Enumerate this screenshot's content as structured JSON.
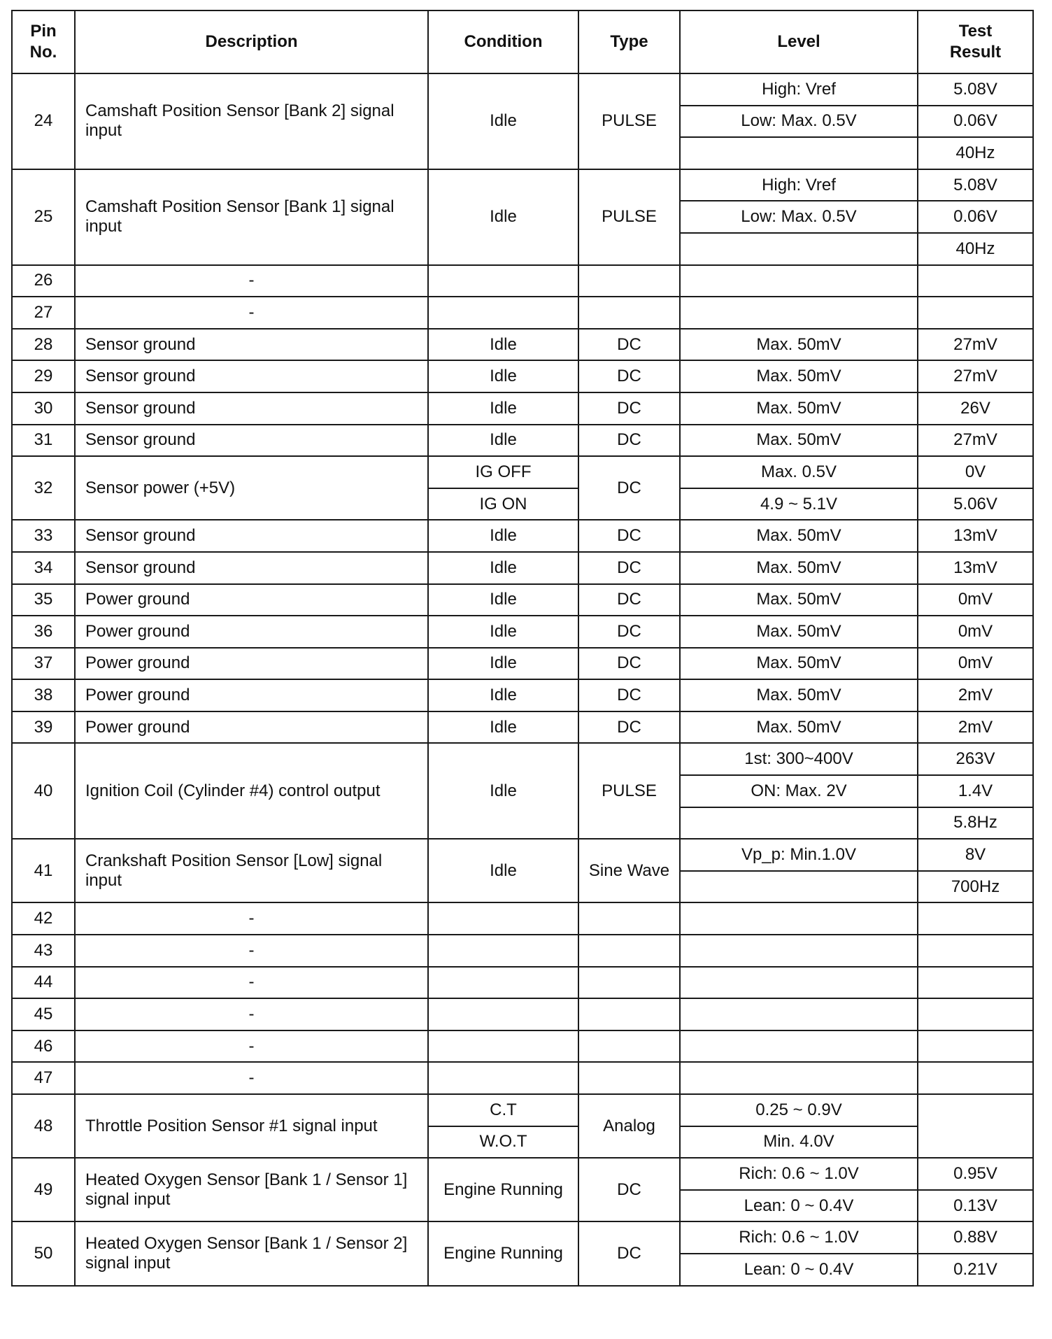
{
  "headers": [
    "Pin No.",
    "Description",
    "Condition",
    "Type",
    "Level",
    "Test Result"
  ],
  "rows": [
    {
      "pin": "24",
      "description": "Camshaft Position Sensor [Bank 2] signal input",
      "condition": [
        "Idle"
      ],
      "type": [
        "PULSE"
      ],
      "level": [
        "High:  Vref",
        "Low:  Max.  0.5V",
        ""
      ],
      "result": [
        "5.08V",
        "0.06V",
        "40Hz"
      ]
    },
    {
      "pin": "25",
      "description": "Camshaft Position Sensor [Bank 1] signal input",
      "condition": [
        "Idle"
      ],
      "type": [
        "PULSE"
      ],
      "level": [
        "High:  Vref",
        "Low:  Max.  0.5V",
        ""
      ],
      "result": [
        "5.08V",
        "0.06V",
        "40Hz"
      ]
    },
    {
      "pin": "26",
      "description": "-",
      "condition": [
        ""
      ],
      "type": [
        ""
      ],
      "level": [
        ""
      ],
      "result": [
        ""
      ]
    },
    {
      "pin": "27",
      "description": "-",
      "condition": [
        ""
      ],
      "type": [
        ""
      ],
      "level": [
        ""
      ],
      "result": [
        ""
      ]
    },
    {
      "pin": "28",
      "description": "Sensor ground",
      "condition": [
        "Idle"
      ],
      "type": [
        "DC"
      ],
      "level": [
        "Max.  50mV"
      ],
      "result": [
        "27mV"
      ]
    },
    {
      "pin": "29",
      "description": "Sensor ground",
      "condition": [
        "Idle"
      ],
      "type": [
        "DC"
      ],
      "level": [
        "Max.  50mV"
      ],
      "result": [
        "27mV"
      ]
    },
    {
      "pin": "30",
      "description": "Sensor ground",
      "condition": [
        "Idle"
      ],
      "type": [
        "DC"
      ],
      "level": [
        "Max.  50mV"
      ],
      "result": [
        "26V"
      ]
    },
    {
      "pin": "31",
      "description": "Sensor ground",
      "condition": [
        "Idle"
      ],
      "type": [
        "DC"
      ],
      "level": [
        "Max.  50mV"
      ],
      "result": [
        "27mV"
      ]
    },
    {
      "pin": "32",
      "description": "Sensor power (+5V)",
      "condition": [
        "IG OFF",
        "IG ON"
      ],
      "type": [
        "DC"
      ],
      "level": [
        "Max.  0.5V",
        "4.9 ~ 5.1V"
      ],
      "result": [
        "0V",
        "5.06V"
      ]
    },
    {
      "pin": "33",
      "description": "Sensor ground",
      "condition": [
        "Idle"
      ],
      "type": [
        "DC"
      ],
      "level": [
        "Max.  50mV"
      ],
      "result": [
        "13mV"
      ]
    },
    {
      "pin": "34",
      "description": "Sensor ground",
      "condition": [
        "Idle"
      ],
      "type": [
        "DC"
      ],
      "level": [
        "Max.  50mV"
      ],
      "result": [
        "13mV"
      ]
    },
    {
      "pin": "35",
      "description": "Power ground",
      "condition": [
        "Idle"
      ],
      "type": [
        "DC"
      ],
      "level": [
        "Max.  50mV"
      ],
      "result": [
        "0mV"
      ]
    },
    {
      "pin": "36",
      "description": "Power ground",
      "condition": [
        "Idle"
      ],
      "type": [
        "DC"
      ],
      "level": [
        "Max.  50mV"
      ],
      "result": [
        "0mV"
      ]
    },
    {
      "pin": "37",
      "description": "Power ground",
      "condition": [
        "Idle"
      ],
      "type": [
        "DC"
      ],
      "level": [
        "Max.  50mV"
      ],
      "result": [
        "0mV"
      ]
    },
    {
      "pin": "38",
      "description": "Power ground",
      "condition": [
        "Idle"
      ],
      "type": [
        "DC"
      ],
      "level": [
        "Max.  50mV"
      ],
      "result": [
        "2mV"
      ]
    },
    {
      "pin": "39",
      "description": "Power ground",
      "condition": [
        "Idle"
      ],
      "type": [
        "DC"
      ],
      "level": [
        "Max.  50mV"
      ],
      "result": [
        "2mV"
      ]
    },
    {
      "pin": "40",
      "description": "Ignition Coil (Cylinder #4) control output",
      "condition": [
        "Idle"
      ],
      "type": [
        "PULSE"
      ],
      "level": [
        "1st:  300~400V",
        "ON:  Max.  2V",
        ""
      ],
      "result": [
        "263V",
        "1.4V",
        "5.8Hz"
      ]
    },
    {
      "pin": "41",
      "description": "Crankshaft Position Sensor [Low] signal input",
      "condition": [
        "Idle"
      ],
      "type": [
        "Sine Wave"
      ],
      "level": [
        "Vp_p:  Min.1.0V",
        ""
      ],
      "result": [
        "8V",
        "700Hz"
      ]
    },
    {
      "pin": "42",
      "description": "-",
      "condition": [
        ""
      ],
      "type": [
        ""
      ],
      "level": [
        ""
      ],
      "result": [
        ""
      ]
    },
    {
      "pin": "43",
      "description": "-",
      "condition": [
        ""
      ],
      "type": [
        ""
      ],
      "level": [
        ""
      ],
      "result": [
        ""
      ]
    },
    {
      "pin": "44",
      "description": "-",
      "condition": [
        ""
      ],
      "type": [
        ""
      ],
      "level": [
        ""
      ],
      "result": [
        ""
      ]
    },
    {
      "pin": "45",
      "description": "-",
      "condition": [
        ""
      ],
      "type": [
        ""
      ],
      "level": [
        ""
      ],
      "result": [
        ""
      ]
    },
    {
      "pin": "46",
      "description": "-",
      "condition": [
        ""
      ],
      "type": [
        ""
      ],
      "level": [
        ""
      ],
      "result": [
        ""
      ]
    },
    {
      "pin": "47",
      "description": "-",
      "condition": [
        ""
      ],
      "type": [
        ""
      ],
      "level": [
        ""
      ],
      "result": [
        ""
      ]
    },
    {
      "pin": "48",
      "description": "Throttle Position Sensor #1 signal input",
      "condition": [
        "C.T",
        "W.O.T"
      ],
      "type": [
        "Analog"
      ],
      "level": [
        "0.25 ~ 0.9V",
        "Min.  4.0V"
      ],
      "result": [
        ""
      ]
    },
    {
      "pin": "49",
      "description": "Heated Oxygen Sensor [Bank 1 / Sensor 1] signal input",
      "condition": [
        "Engine Running"
      ],
      "type": [
        "DC"
      ],
      "level": [
        "Rich:  0.6  ~  1.0V",
        "Lean:  0 ~ 0.4V"
      ],
      "result": [
        "0.95V",
        "0.13V"
      ]
    },
    {
      "pin": "50",
      "description": "Heated Oxygen Sensor [Bank 1 / Sensor 2] signal input",
      "condition": [
        "Engine Running"
      ],
      "type": [
        "DC"
      ],
      "level": [
        "Rich:  0.6  ~  1.0V",
        "Lean:  0 ~ 0.4V"
      ],
      "result": [
        "0.88V",
        "0.21V"
      ]
    }
  ]
}
